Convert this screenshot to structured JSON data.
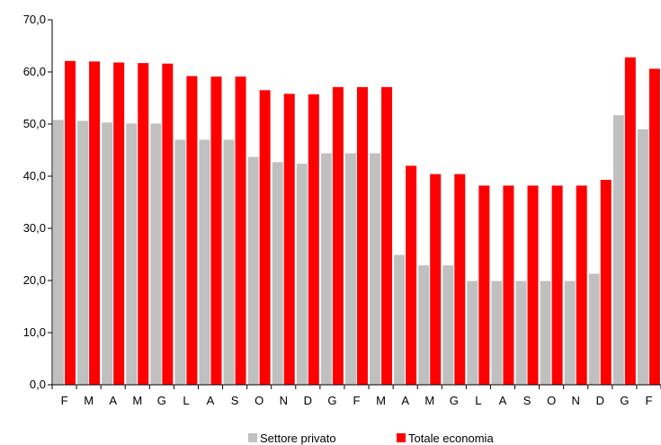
{
  "chart_data": {
    "type": "bar",
    "categories": [
      "F",
      "M",
      "A",
      "M",
      "G",
      "L",
      "A",
      "S",
      "O",
      "N",
      "D",
      "G",
      "F",
      "M",
      "A",
      "M",
      "G",
      "L",
      "A",
      "S",
      "O",
      "N",
      "D",
      "G",
      "F"
    ],
    "series": [
      {
        "name": "Settore privato",
        "color": "#c0c0c0",
        "values": [
          50.8,
          50.6,
          50.3,
          50.1,
          50.1,
          47.0,
          47.0,
          47.0,
          43.7,
          42.7,
          42.4,
          44.4,
          44.4,
          44.4,
          24.9,
          22.9,
          22.9,
          19.9,
          19.9,
          19.9,
          19.9,
          19.9,
          21.3,
          51.7,
          49.0
        ]
      },
      {
        "name": "Totale economia",
        "color": "#ff0000",
        "values": [
          62.1,
          62.0,
          61.8,
          61.7,
          61.6,
          59.2,
          59.1,
          59.1,
          56.5,
          55.8,
          55.7,
          57.1,
          57.1,
          57.1,
          42.0,
          40.4,
          40.4,
          38.2,
          38.2,
          38.2,
          38.2,
          38.2,
          39.3,
          62.8,
          60.6
        ]
      }
    ],
    "y_ticks": [
      "0,0",
      "10,0",
      "20,0",
      "30,0",
      "40,0",
      "50,0",
      "60,0",
      "70,0"
    ],
    "ylim": [
      0,
      70
    ],
    "grid": false,
    "legend_position": "bottom",
    "title": "",
    "xlabel": "",
    "ylabel": ""
  }
}
